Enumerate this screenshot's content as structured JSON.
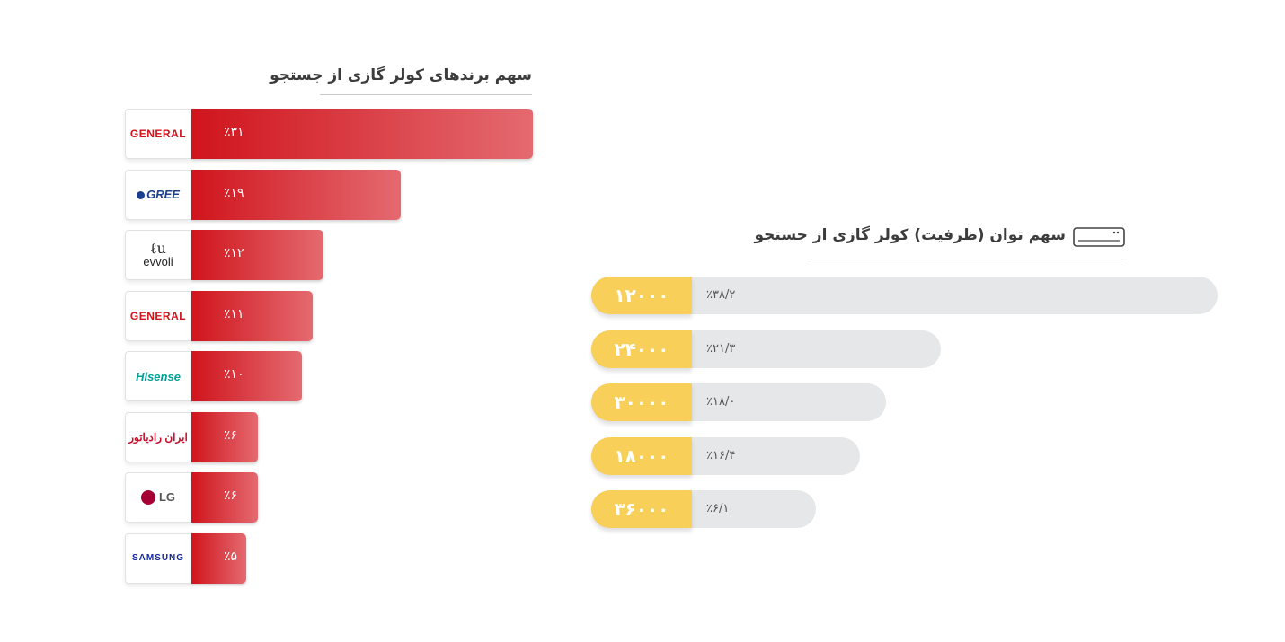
{
  "brand_chart": {
    "title": "سهم برندهای کولر گازی از جستجو"
  },
  "capacity_chart": {
    "title": "سهم توان (ظرفیت) کولر گازی از جستجو",
    "title_icon": "air-conditioner-icon"
  },
  "colors": {
    "brand_bar_start": "#d0141c",
    "brand_bar_end": "#e46a70",
    "capacity_pill": "#f8cf58",
    "capacity_track": "#e6e7e8"
  },
  "chart_data": [
    {
      "type": "bar",
      "orientation": "horizontal",
      "title": "سهم برندهای کولر گازی از جستجو",
      "categories": [
        "GENERAL",
        "GREE",
        "evvoli",
        "GENERAL",
        "Hisense",
        "ایران رادیاتور",
        "LG",
        "SAMSUNG"
      ],
      "logo_icons": [
        "general-logo-icon",
        "gree-logo-icon",
        "evvoli-logo-icon",
        "general-logo-icon",
        "hisense-logo-icon",
        "iran-radiator-logo-icon",
        "lg-logo-icon",
        "samsung-logo-icon"
      ],
      "logo_texts": [
        "GENERAL",
        "GREE",
        "evvoli",
        "GENERAL",
        "Hisense",
        "ایران رادیاتور",
        "LG",
        "SAMSUNG"
      ],
      "values": [
        31,
        19,
        12,
        11,
        10,
        6,
        6,
        5
      ],
      "value_labels": [
        "٪۳۱",
        "٪۱۹",
        "٪۱۲",
        "٪۱۱",
        "٪۱۰",
        "٪۶",
        "٪۶",
        "٪۵"
      ],
      "xlim": [
        0,
        31
      ]
    },
    {
      "type": "bar",
      "orientation": "horizontal",
      "title": "سهم توان (ظرفیت) کولر گازی از جستجو",
      "categories": [
        "۱۲۰۰۰",
        "۲۴۰۰۰",
        "۳۰۰۰۰",
        "۱۸۰۰۰",
        "۳۶۰۰۰"
      ],
      "values": [
        38.2,
        21.3,
        18.0,
        16.4,
        6.1
      ],
      "value_labels": [
        "٪۳۸/۲",
        "٪۲۱/۳",
        "٪۱۸/۰",
        "٪۱۶/۴",
        "٪۶/۱"
      ],
      "xlim": [
        0,
        38.2
      ]
    }
  ]
}
